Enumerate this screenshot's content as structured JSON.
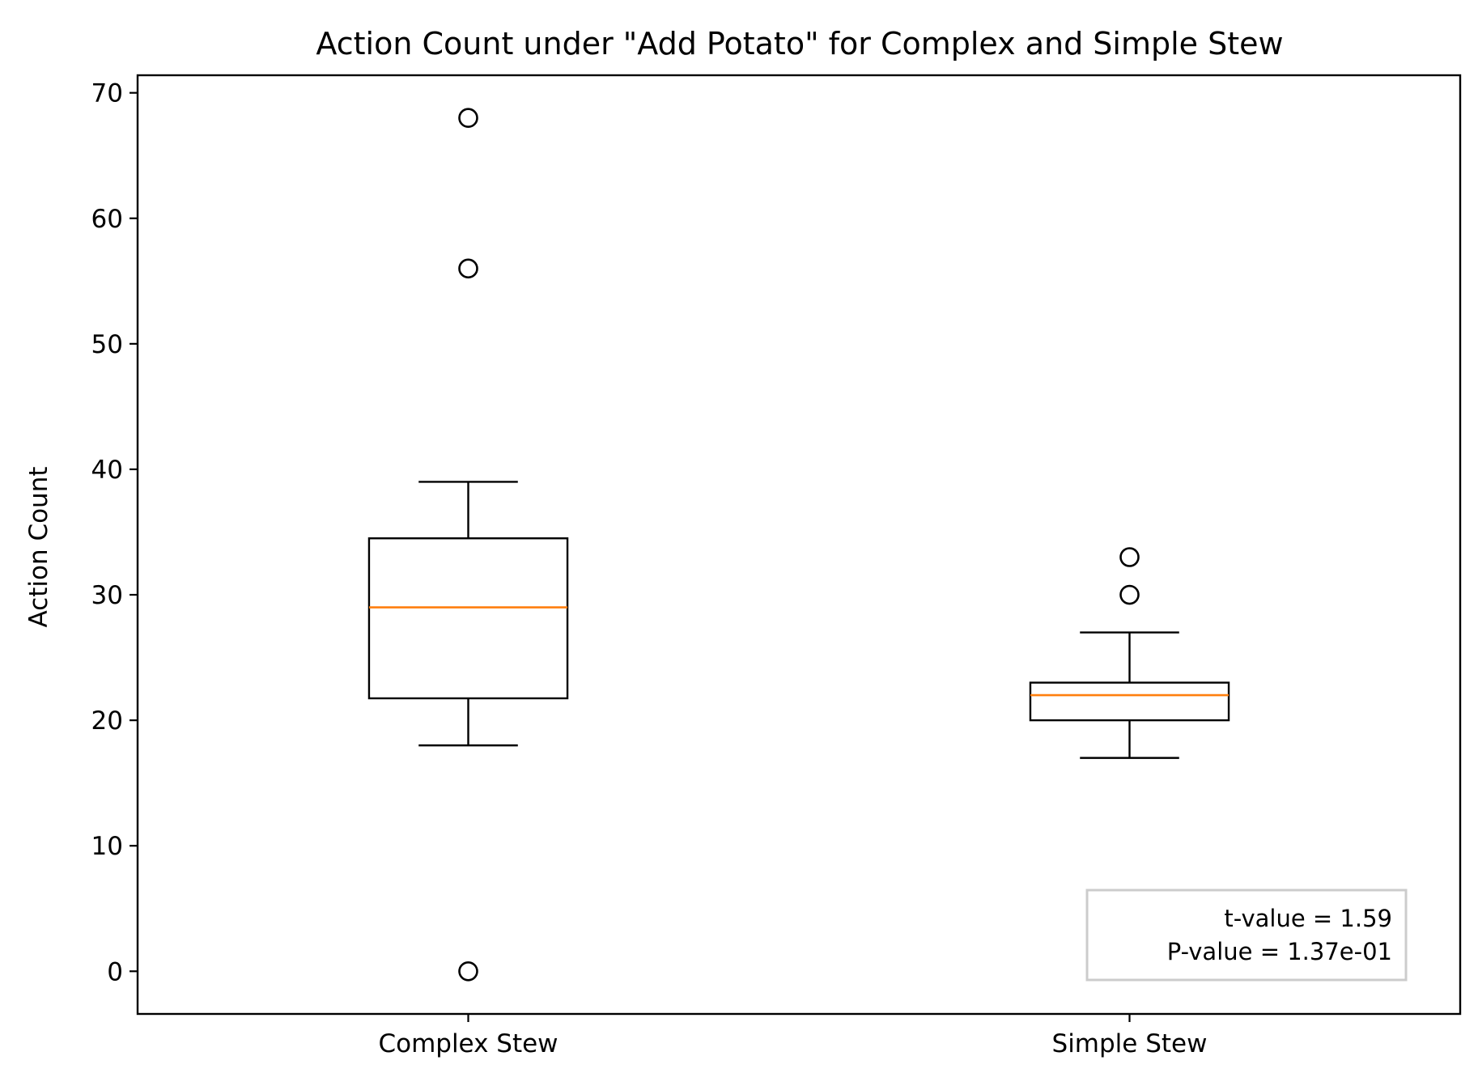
{
  "chart_data": {
    "type": "boxplot",
    "title": "Action Count under \"Add Potato\" for Complex and Simple Stew",
    "xlabel": "",
    "ylabel": "Action Count",
    "ylim": [
      -3.4,
      71.4
    ],
    "yticks": [
      0,
      10,
      20,
      30,
      40,
      50,
      60,
      70
    ],
    "categories": [
      "Complex Stew",
      "Simple Stew"
    ],
    "boxes": [
      {
        "category": "Complex Stew",
        "whisker_low": 18,
        "q1": 21.75,
        "median": 29,
        "q3": 34.5,
        "whisker_high": 39,
        "outliers": [
          68,
          56,
          0
        ]
      },
      {
        "category": "Simple Stew",
        "whisker_low": 17,
        "q1": 20,
        "median": 22,
        "q3": 23,
        "whisker_high": 27,
        "outliers": [
          33,
          30
        ]
      }
    ],
    "grid": false,
    "annotation": {
      "line1": "t-value = 1.59",
      "line2": "P-value = 1.37e-01",
      "placement": "bottom-right"
    },
    "colors": {
      "box": "#000000",
      "median": "#ff7f0e",
      "annotation_border": "#cccccc"
    }
  }
}
